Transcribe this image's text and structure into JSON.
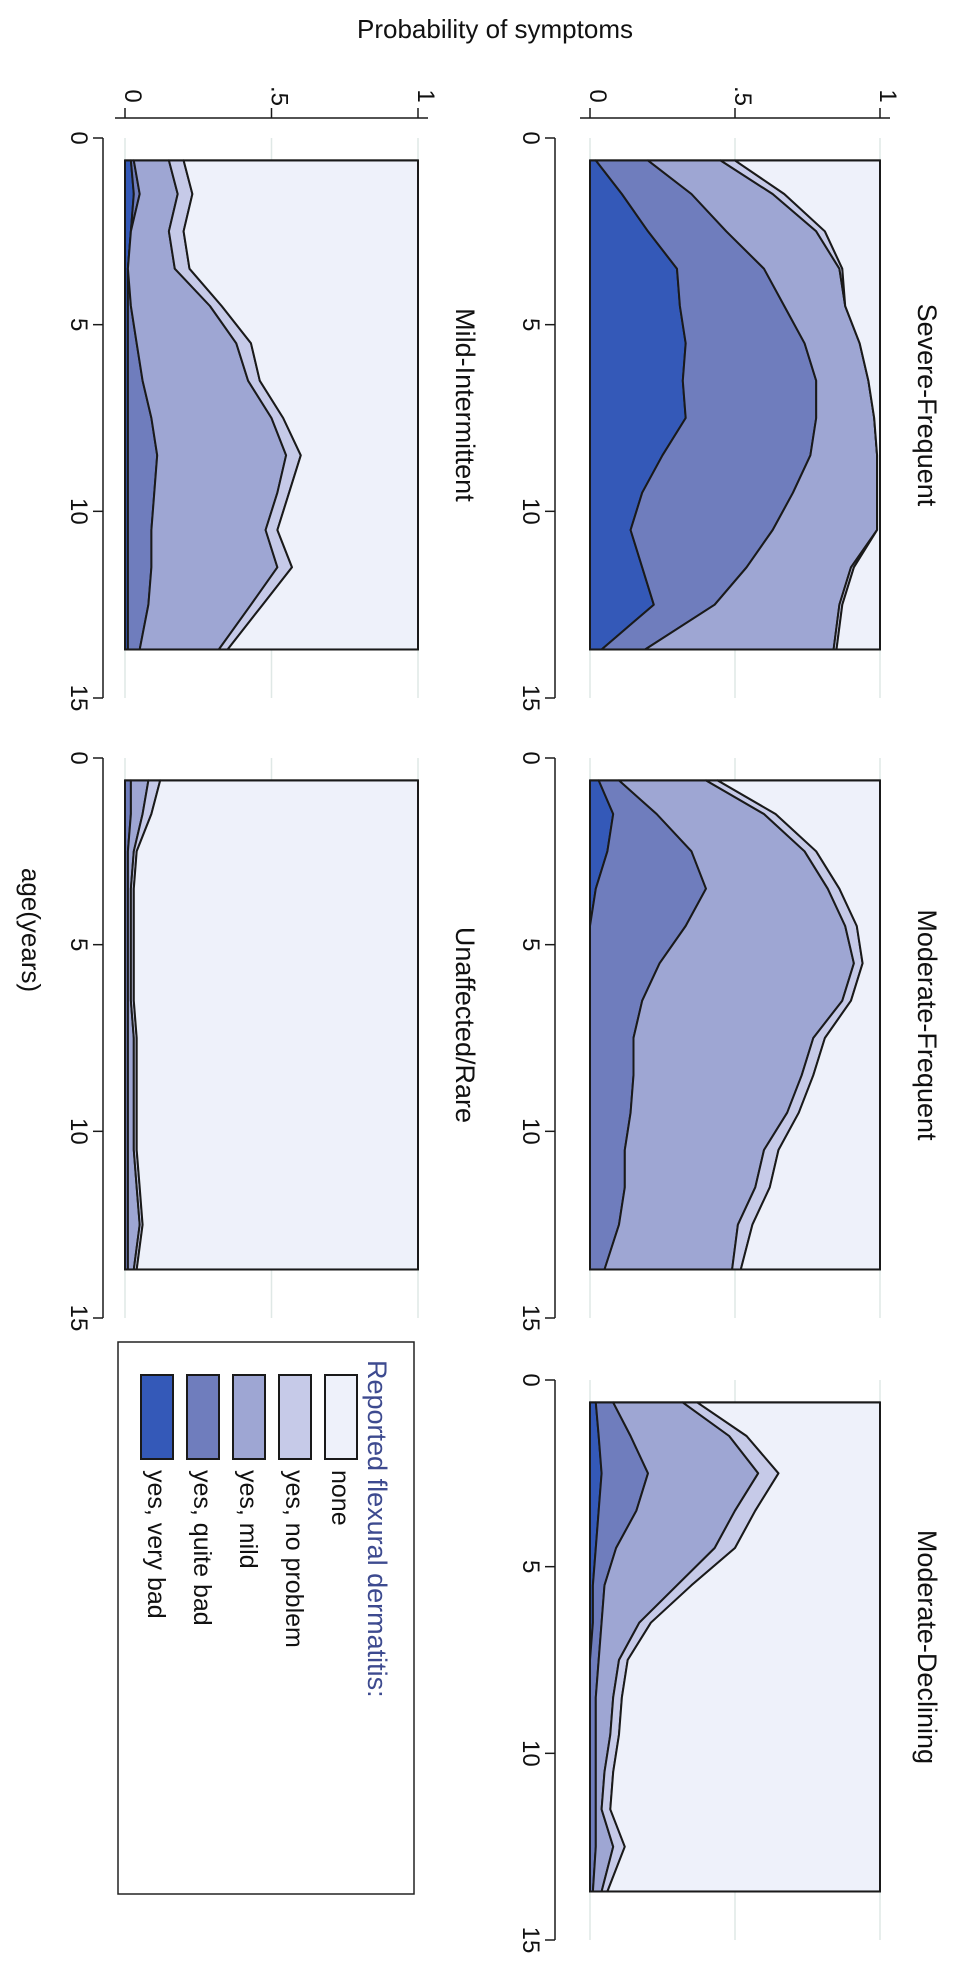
{
  "figure": {
    "y_axis_title": "Probability of symptoms",
    "x_axis_title": "age(years)"
  },
  "legend": {
    "title": "Reported flexural dermatitis:",
    "items": [
      {
        "label": "none",
        "color": "#eef1fa"
      },
      {
        "label": "yes, no problem",
        "color": "#c6cae8"
      },
      {
        "label": "yes, mild",
        "color": "#9ea6d3"
      },
      {
        "label": "yes, quite bad",
        "color": "#6f7dbd"
      },
      {
        "label": "yes, very bad",
        "color": "#3459b8"
      }
    ]
  },
  "chart_data": {
    "type": "area",
    "stacked": true,
    "orientation": "rotated 90 degrees clockwise",
    "categories_order_from_baseline": [
      "yes, very bad",
      "yes, quite bad",
      "yes, mild",
      "yes, no problem",
      "none"
    ],
    "xlabel": "age(years)",
    "ylabel": "Probability of symptoms",
    "xlim": [
      0,
      15
    ],
    "ylim": [
      0,
      1
    ],
    "x_ticks": [
      0,
      5,
      10,
      15
    ],
    "y_ticks": [
      0,
      0.5,
      1
    ],
    "y_tick_labels": [
      "0",
      ".5",
      "1"
    ],
    "x": [
      0.6,
      1.5,
      2.5,
      3.5,
      4.5,
      5.5,
      6.5,
      7.5,
      8.5,
      9.5,
      10.5,
      11.5,
      12.5,
      13.7
    ],
    "panels": [
      {
        "title": "Severe-Frequent",
        "cumulative": [
          [
            0.02,
            0.11,
            0.2,
            0.3,
            0.31,
            0.33,
            0.32,
            0.33,
            0.25,
            0.18,
            0.14,
            0.18,
            0.22,
            0.04
          ],
          [
            0.2,
            0.35,
            0.47,
            0.6,
            0.67,
            0.74,
            0.78,
            0.78,
            0.76,
            0.7,
            0.63,
            0.54,
            0.43,
            0.19
          ],
          [
            0.45,
            0.63,
            0.78,
            0.86,
            0.88,
            0.93,
            0.96,
            0.98,
            0.99,
            0.99,
            0.99,
            0.9,
            0.86,
            0.84
          ],
          [
            0.5,
            0.67,
            0.81,
            0.87,
            0.88,
            0.93,
            0.96,
            0.98,
            0.99,
            0.99,
            0.99,
            0.91,
            0.87,
            0.85
          ],
          [
            1,
            1,
            1,
            1,
            1,
            1,
            1,
            1,
            1,
            1,
            1,
            1,
            1,
            1
          ]
        ]
      },
      {
        "title": "Moderate-Frequent",
        "cumulative": [
          [
            0.03,
            0.08,
            0.06,
            0.02,
            0.0,
            0.0,
            0.0,
            0.0,
            0.0,
            0.0,
            0.0,
            0.0,
            0.0,
            0.0
          ],
          [
            0.1,
            0.23,
            0.35,
            0.4,
            0.33,
            0.24,
            0.18,
            0.15,
            0.15,
            0.14,
            0.12,
            0.12,
            0.1,
            0.05
          ],
          [
            0.4,
            0.6,
            0.74,
            0.82,
            0.88,
            0.91,
            0.87,
            0.77,
            0.73,
            0.68,
            0.6,
            0.57,
            0.51,
            0.49
          ],
          [
            0.44,
            0.64,
            0.78,
            0.86,
            0.92,
            0.94,
            0.9,
            0.81,
            0.77,
            0.72,
            0.65,
            0.62,
            0.56,
            0.52
          ],
          [
            1,
            1,
            1,
            1,
            1,
            1,
            1,
            1,
            1,
            1,
            1,
            1,
            1,
            1
          ]
        ]
      },
      {
        "title": "Moderate-Declining",
        "cumulative": [
          [
            0.02,
            0.03,
            0.04,
            0.03,
            0.02,
            0.01,
            0.01,
            0.0,
            0.0,
            0.0,
            0.0,
            0.0,
            0.0,
            0.0
          ],
          [
            0.08,
            0.14,
            0.2,
            0.16,
            0.09,
            0.05,
            0.04,
            0.03,
            0.02,
            0.02,
            0.02,
            0.02,
            0.02,
            0.01
          ],
          [
            0.32,
            0.48,
            0.58,
            0.5,
            0.43,
            0.3,
            0.17,
            0.1,
            0.08,
            0.07,
            0.05,
            0.04,
            0.08,
            0.04
          ],
          [
            0.37,
            0.54,
            0.65,
            0.57,
            0.5,
            0.35,
            0.21,
            0.13,
            0.11,
            0.1,
            0.08,
            0.07,
            0.12,
            0.06
          ],
          [
            1,
            1,
            1,
            1,
            1,
            1,
            1,
            1,
            1,
            1,
            1,
            1,
            1,
            1
          ]
        ]
      },
      {
        "title": "Mild-Intermittent",
        "cumulative": [
          [
            0.02,
            0.03,
            0.02,
            0.01,
            0.01,
            0.01,
            0.01,
            0.01,
            0.01,
            0.01,
            0.01,
            0.01,
            0.01,
            0.01
          ],
          [
            0.03,
            0.05,
            0.02,
            0.01,
            0.02,
            0.04,
            0.06,
            0.09,
            0.11,
            0.1,
            0.09,
            0.09,
            0.08,
            0.05
          ],
          [
            0.15,
            0.18,
            0.15,
            0.17,
            0.29,
            0.38,
            0.42,
            0.5,
            0.55,
            0.52,
            0.48,
            0.52,
            0.43,
            0.32
          ],
          [
            0.2,
            0.23,
            0.2,
            0.22,
            0.33,
            0.43,
            0.46,
            0.54,
            0.6,
            0.56,
            0.52,
            0.57,
            0.47,
            0.35
          ],
          [
            1,
            1,
            1,
            1,
            1,
            1,
            1,
            1,
            1,
            1,
            1,
            1,
            1,
            1
          ]
        ]
      },
      {
        "title": "Unaffected/Rare",
        "cumulative": [
          [
            0.0,
            0.0,
            0.0,
            0.0,
            0.0,
            0.0,
            0.0,
            0.0,
            0.0,
            0.0,
            0.0,
            0.0,
            0.0,
            0.0
          ],
          [
            0.02,
            0.02,
            0.01,
            0.01,
            0.01,
            0.01,
            0.01,
            0.01,
            0.01,
            0.01,
            0.01,
            0.01,
            0.01,
            0.01
          ],
          [
            0.08,
            0.06,
            0.03,
            0.02,
            0.02,
            0.02,
            0.02,
            0.03,
            0.03,
            0.03,
            0.03,
            0.04,
            0.05,
            0.03
          ],
          [
            0.12,
            0.09,
            0.04,
            0.03,
            0.03,
            0.03,
            0.03,
            0.04,
            0.04,
            0.04,
            0.04,
            0.05,
            0.06,
            0.04
          ],
          [
            1,
            1,
            1,
            1,
            1,
            1,
            1,
            1,
            1,
            1,
            1,
            1,
            1,
            1
          ]
        ]
      }
    ]
  }
}
